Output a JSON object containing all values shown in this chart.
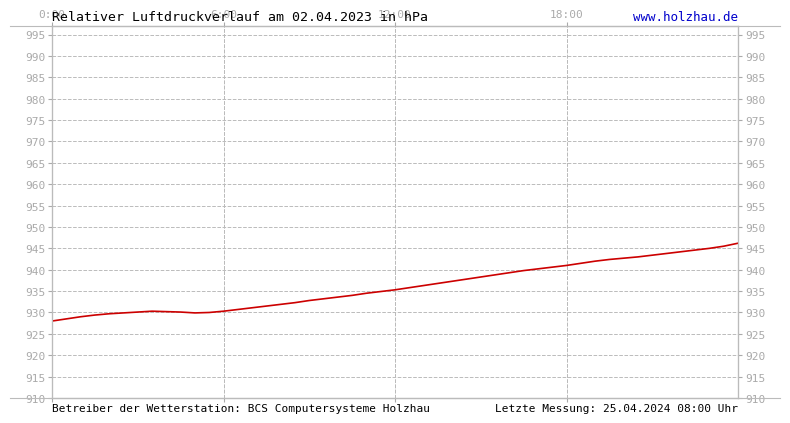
{
  "title": "Relativer Luftdruckverlauf am 02.04.2023 in hPa",
  "url_text": "www.holzhau.de",
  "footer_left": "Betreiber der Wetterstation: BCS Computersysteme Holzhau",
  "footer_right": "Letzte Messung: 25.04.2024 08:00 Uhr",
  "background_color": "#ffffff",
  "plot_bg_color": "#ffffff",
  "grid_color": "#bbbbbb",
  "line_color": "#cc0000",
  "line_width": 1.2,
  "xlim": [
    0,
    1440
  ],
  "ylim": [
    910,
    997
  ],
  "ytick_start": 910,
  "ytick_end": 995,
  "ytick_step": 5,
  "xtick_positions": [
    0,
    360,
    720,
    1080
  ],
  "xtick_labels": [
    "0:00",
    "6:00",
    "12:00",
    "18:00"
  ],
  "title_fontsize": 9.5,
  "tick_fontsize": 8,
  "footer_fontsize": 8,
  "url_fontsize": 9,
  "title_color": "#000000",
  "url_color": "#0000cc",
  "tick_color": "#aaaaaa",
  "pressure_data_x": [
    0,
    30,
    60,
    90,
    120,
    150,
    180,
    210,
    240,
    270,
    300,
    330,
    360,
    390,
    420,
    450,
    480,
    510,
    540,
    570,
    600,
    630,
    660,
    690,
    720,
    750,
    780,
    810,
    840,
    870,
    900,
    930,
    960,
    990,
    1020,
    1050,
    1080,
    1110,
    1140,
    1170,
    1200,
    1230,
    1260,
    1290,
    1320,
    1350,
    1380,
    1410,
    1440
  ],
  "pressure_data_y": [
    928.0,
    928.5,
    929.0,
    929.4,
    929.7,
    929.9,
    930.1,
    930.3,
    930.2,
    930.1,
    929.9,
    930.0,
    930.3,
    930.7,
    931.1,
    931.5,
    931.9,
    932.3,
    932.8,
    933.2,
    933.6,
    934.0,
    934.5,
    934.9,
    935.3,
    935.8,
    936.3,
    936.8,
    937.3,
    937.8,
    938.3,
    938.8,
    939.3,
    939.8,
    940.2,
    940.6,
    941.0,
    941.5,
    942.0,
    942.4,
    942.7,
    943.0,
    943.4,
    943.8,
    944.2,
    944.6,
    945.0,
    945.5,
    946.2
  ]
}
